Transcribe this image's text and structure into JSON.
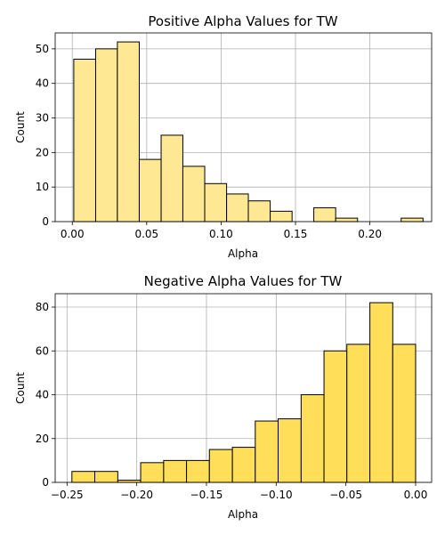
{
  "chart_data": [
    {
      "type": "bar",
      "title": "Positive Alpha Values for TW",
      "xlabel": "Alpha",
      "ylabel": "Count",
      "bar_color": "#ffe894",
      "xlim": [
        -0.0115,
        0.2415
      ],
      "ylim": [
        0,
        54.6
      ],
      "xticks": [
        0.0,
        0.05,
        0.1,
        0.15,
        0.2
      ],
      "xtick_labels": [
        "0.00",
        "0.05",
        "0.10",
        "0.15",
        "0.20"
      ],
      "yticks": [
        0,
        10,
        20,
        30,
        40,
        50
      ],
      "grid": true,
      "bins": [
        {
          "x0": 0.001,
          "x1": 0.0157,
          "count": 47
        },
        {
          "x0": 0.0157,
          "x1": 0.0303,
          "count": 50
        },
        {
          "x0": 0.0303,
          "x1": 0.045,
          "count": 52
        },
        {
          "x0": 0.045,
          "x1": 0.0597,
          "count": 18
        },
        {
          "x0": 0.0597,
          "x1": 0.0743,
          "count": 25
        },
        {
          "x0": 0.0743,
          "x1": 0.089,
          "count": 16
        },
        {
          "x0": 0.089,
          "x1": 0.1037,
          "count": 11
        },
        {
          "x0": 0.1037,
          "x1": 0.1183,
          "count": 8
        },
        {
          "x0": 0.1183,
          "x1": 0.133,
          "count": 6
        },
        {
          "x0": 0.133,
          "x1": 0.1477,
          "count": 3
        },
        {
          "x0": 0.1477,
          "x1": 0.1623,
          "count": 0
        },
        {
          "x0": 0.1623,
          "x1": 0.177,
          "count": 4
        },
        {
          "x0": 0.177,
          "x1": 0.1917,
          "count": 1
        },
        {
          "x0": 0.1917,
          "x1": 0.2063,
          "count": 0
        },
        {
          "x0": 0.2063,
          "x1": 0.221,
          "count": 0
        },
        {
          "x0": 0.221,
          "x1": 0.2357,
          "count": 1
        }
      ]
    },
    {
      "type": "bar",
      "title": "Negative Alpha Values for TW",
      "xlabel": "Alpha",
      "ylabel": "Count",
      "bar_color": "#ffdf59",
      "xlim": [
        -0.2585,
        0.0115
      ],
      "ylim": [
        0,
        86.1
      ],
      "xticks": [
        -0.25,
        -0.2,
        -0.15,
        -0.1,
        -0.05,
        0.0
      ],
      "xtick_labels": [
        "−0.25",
        "−0.20",
        "−0.15",
        "−0.10",
        "−0.05",
        "0.00"
      ],
      "yticks": [
        0,
        20,
        40,
        60,
        80
      ],
      "grid": true,
      "bins": [
        {
          "x0": -0.2465,
          "x1": -0.2301,
          "count": 5
        },
        {
          "x0": -0.2301,
          "x1": -0.2136,
          "count": 5
        },
        {
          "x0": -0.2136,
          "x1": -0.1972,
          "count": 1
        },
        {
          "x0": -0.1972,
          "x1": -0.1807,
          "count": 9
        },
        {
          "x0": -0.1807,
          "x1": -0.1643,
          "count": 10
        },
        {
          "x0": -0.1643,
          "x1": -0.1479,
          "count": 10
        },
        {
          "x0": -0.1479,
          "x1": -0.1314,
          "count": 15
        },
        {
          "x0": -0.1314,
          "x1": -0.115,
          "count": 16
        },
        {
          "x0": -0.115,
          "x1": -0.0986,
          "count": 28
        },
        {
          "x0": -0.0986,
          "x1": -0.0821,
          "count": 29
        },
        {
          "x0": -0.0821,
          "x1": -0.0657,
          "count": 40
        },
        {
          "x0": -0.0657,
          "x1": -0.0493,
          "count": 60
        },
        {
          "x0": -0.0493,
          "x1": -0.0328,
          "count": 63
        },
        {
          "x0": -0.0328,
          "x1": -0.0164,
          "count": 82
        },
        {
          "x0": -0.0164,
          "x1": 0.0,
          "count": 63
        }
      ]
    }
  ]
}
